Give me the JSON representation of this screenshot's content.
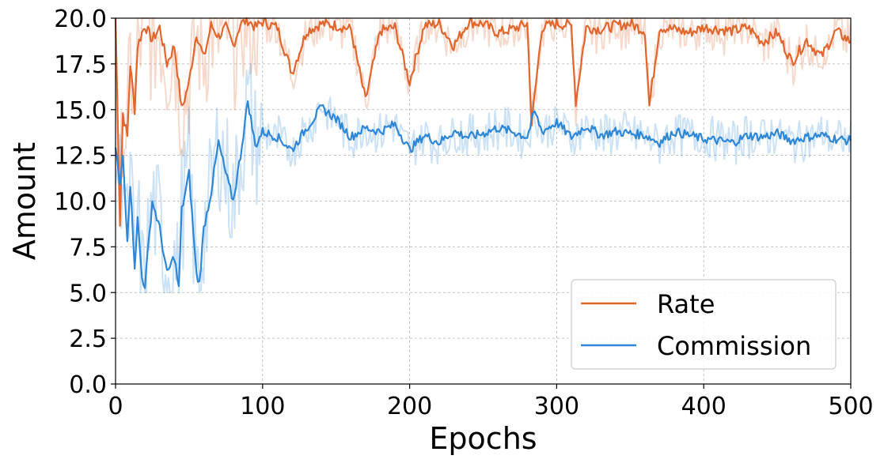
{
  "chart_data": {
    "type": "line",
    "xlabel": "Epochs",
    "ylabel": "Amount",
    "xlim": [
      0,
      500
    ],
    "ylim": [
      0,
      20
    ],
    "xticks": [
      "0",
      "100",
      "200",
      "300",
      "400",
      "500"
    ],
    "yticks": [
      "0.0",
      "2.5",
      "5.0",
      "7.5",
      "10.0",
      "12.5",
      "15.0",
      "17.5",
      "20.0"
    ],
    "grid": true,
    "legend": "lower-right",
    "series": [
      {
        "name": "Rate",
        "color": "#e0662e",
        "x": [
          0,
          3,
          5,
          8,
          10,
          13,
          15,
          18,
          20,
          25,
          30,
          35,
          40,
          45,
          50,
          55,
          60,
          65,
          70,
          75,
          80,
          85,
          90,
          95,
          100,
          110,
          120,
          130,
          140,
          150,
          160,
          170,
          180,
          190,
          200,
          210,
          220,
          230,
          240,
          250,
          260,
          270,
          280,
          283,
          290,
          300,
          310,
          313,
          320,
          330,
          340,
          350,
          360,
          363,
          370,
          380,
          390,
          400,
          410,
          420,
          430,
          440,
          450,
          460,
          470,
          480,
          490,
          500
        ],
        "y": [
          20.0,
          8.8,
          14.8,
          13.5,
          17.5,
          15.0,
          18.5,
          19.2,
          19.6,
          18.8,
          19.5,
          17.5,
          18.5,
          15.0,
          16.5,
          19.2,
          17.8,
          19.6,
          19.0,
          19.5,
          18.5,
          19.7,
          19.9,
          19.5,
          19.8,
          19.5,
          17.0,
          19.3,
          19.7,
          19.6,
          19.4,
          15.5,
          19.3,
          19.5,
          16.5,
          19.6,
          19.7,
          18.5,
          19.8,
          19.7,
          19.2,
          19.4,
          19.7,
          14.2,
          19.5,
          19.7,
          19.6,
          15.4,
          19.5,
          19.4,
          19.6,
          19.7,
          19.3,
          15.2,
          19.5,
          19.4,
          19.2,
          19.5,
          19.4,
          19.3,
          19.5,
          18.7,
          19.2,
          17.6,
          18.8,
          17.9,
          19.3,
          18.7
        ]
      },
      {
        "name": "Commission",
        "color": "#2e86d6",
        "x": [
          0,
          3,
          5,
          8,
          10,
          13,
          15,
          18,
          20,
          25,
          30,
          35,
          40,
          43,
          45,
          50,
          55,
          57,
          60,
          65,
          70,
          75,
          80,
          85,
          90,
          95,
          100,
          110,
          120,
          130,
          140,
          150,
          160,
          170,
          180,
          190,
          200,
          210,
          220,
          230,
          240,
          250,
          260,
          270,
          280,
          285,
          290,
          300,
          310,
          320,
          330,
          340,
          350,
          360,
          370,
          380,
          390,
          400,
          410,
          420,
          430,
          440,
          450,
          460,
          470,
          480,
          490,
          500
        ],
        "y": [
          13.0,
          10.8,
          12.5,
          8.0,
          11.0,
          6.5,
          9.0,
          5.8,
          5.4,
          10.0,
          8.5,
          6.0,
          7.0,
          5.2,
          9.5,
          11.5,
          6.0,
          5.5,
          8.5,
          10.5,
          13.2,
          11.5,
          10.0,
          12.5,
          15.5,
          13.0,
          13.8,
          13.5,
          12.8,
          14.0,
          15.1,
          14.5,
          13.5,
          14.0,
          13.8,
          14.2,
          12.8,
          13.6,
          13.2,
          13.8,
          13.5,
          13.7,
          14.0,
          13.8,
          13.5,
          14.9,
          13.8,
          14.3,
          13.5,
          14.1,
          13.6,
          13.8,
          13.7,
          13.6,
          13.2,
          13.8,
          13.6,
          13.4,
          13.3,
          13.2,
          13.6,
          13.5,
          13.7,
          13.3,
          13.5,
          13.6,
          13.4,
          13.3
        ]
      }
    ]
  }
}
